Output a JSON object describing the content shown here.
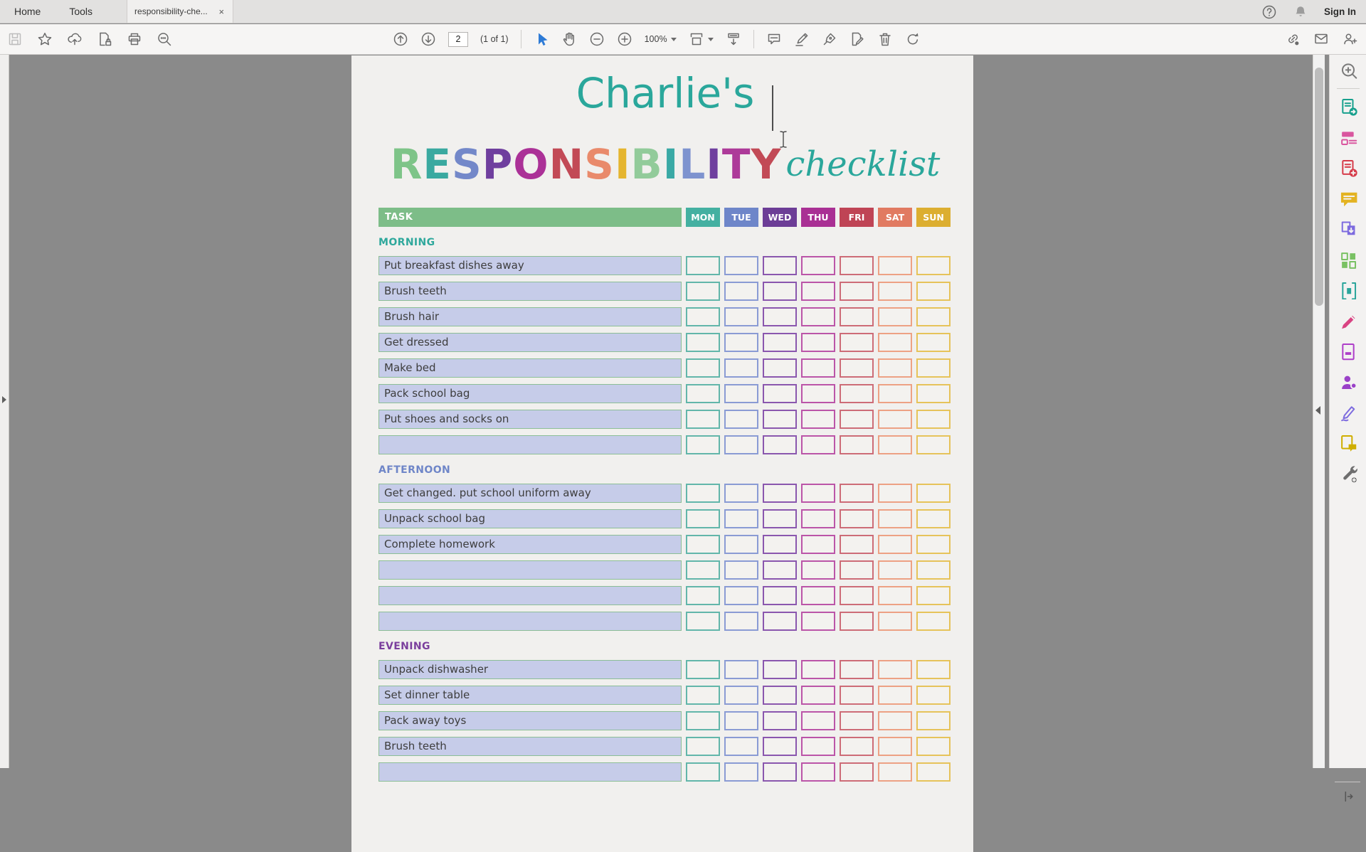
{
  "window": {
    "tabs": [
      {
        "label": "Home"
      },
      {
        "label": "Tools"
      }
    ],
    "document_tab": {
      "label": "responsibility-che...",
      "close_icon": "×"
    },
    "top_right": {
      "sign_in": "Sign In"
    }
  },
  "toolbar": {
    "page_number": "2",
    "page_count": "(1 of 1)",
    "zoom_level": "100%",
    "left_icons": [
      "save",
      "favorite-star",
      "share-cloud",
      "document-lock",
      "print",
      "find"
    ],
    "center_icons": [
      "previous-page",
      "next-page",
      "select-pointer",
      "hand-tool",
      "zoom-out",
      "zoom-in",
      "fit-page",
      "scroll-mode",
      "comment-bubble",
      "highlighter",
      "fill-sign-pen",
      "edit-page",
      "trash",
      "redo"
    ],
    "right_icons": [
      "share-link",
      "email",
      "person-add"
    ]
  },
  "document": {
    "title": "Charlie's",
    "title_color": "#2aa79b",
    "wordart": {
      "letters": [
        {
          "ch": "R",
          "color": "#7ec488"
        },
        {
          "ch": "E",
          "color": "#3aa9a0"
        },
        {
          "ch": "S",
          "color": "#7388c9"
        },
        {
          "ch": "P",
          "color": "#6f3f9e"
        },
        {
          "ch": "O",
          "color": "#ab3197"
        },
        {
          "ch": "N",
          "color": "#c24a56"
        },
        {
          "ch": "S",
          "color": "#e98a6b"
        },
        {
          "ch": "I",
          "color": "#e5b52f"
        },
        {
          "ch": "B",
          "color": "#92cb9a"
        },
        {
          "ch": "I",
          "color": "#3aa9a5"
        },
        {
          "ch": "L",
          "color": "#7e93cf"
        },
        {
          "ch": "I",
          "color": "#6f3f9e"
        },
        {
          "ch": "T",
          "color": "#ad3a99"
        },
        {
          "ch": "Y",
          "color": "#c24a56"
        }
      ],
      "suffix": "checklist",
      "suffix_color": "#2aa79b"
    },
    "table": {
      "task_header": "TASK",
      "task_header_color": "#7dbd88",
      "days": [
        {
          "label": "MON",
          "color": "#44b0a1",
          "box_border": "#62b6aa"
        },
        {
          "label": "TUE",
          "color": "#6e86c9",
          "box_border": "#8a9bd4"
        },
        {
          "label": "WED",
          "color": "#6c3d96",
          "box_border": "#8a57ae"
        },
        {
          "label": "THU",
          "color": "#a93094",
          "box_border": "#bb55a8"
        },
        {
          "label": "FRI",
          "color": "#bf4455",
          "box_border": "#cd6c77"
        },
        {
          "label": "SAT",
          "color": "#e17a61",
          "box_border": "#eda184"
        },
        {
          "label": "SUN",
          "color": "#dcae30",
          "box_border": "#e6c35a"
        }
      ],
      "row_fill": "#c6cce9",
      "row_border": "#8cbe96",
      "sections": [
        {
          "label": "MORNING",
          "color": "#2fa89c",
          "rows": [
            "Put breakfast dishes away",
            "Brush teeth",
            "Brush hair",
            "Get dressed",
            "Make bed",
            "Pack school bag",
            "Put shoes and socks on",
            ""
          ]
        },
        {
          "label": "AFTERNOON",
          "color": "#6f86c8",
          "rows": [
            "Get changed. put school uniform away",
            "Unpack school bag",
            "Complete homework",
            "",
            "",
            ""
          ]
        },
        {
          "label": "EVENING",
          "color": "#7b3f9d",
          "rows": [
            "Unpack dishwasher",
            "Set dinner table",
            "Pack away toys",
            "Brush teeth",
            ""
          ]
        }
      ]
    }
  },
  "right_rail": {
    "tools": [
      {
        "icon": "rail-search",
        "color": "#7a7a7a"
      },
      {
        "type": "divider"
      },
      {
        "icon": "export-pdf",
        "color": "#17a08d"
      },
      {
        "icon": "edit-pdf",
        "color": "#d9569f"
      },
      {
        "icon": "create-pdf",
        "color": "#d63c4a"
      },
      {
        "icon": "comment",
        "color": "#e3b322"
      },
      {
        "icon": "combine-files",
        "color": "#7d6bdf"
      },
      {
        "icon": "organize-pages",
        "color": "#79c163"
      },
      {
        "icon": "compress-pdf",
        "color": "#2aa59b"
      },
      {
        "icon": "fill-sign",
        "color": "#d94382"
      },
      {
        "icon": "redact",
        "color": "#ae3ec9"
      },
      {
        "icon": "request-signatures",
        "color": "#9a41c8"
      },
      {
        "icon": "sign-certificates",
        "color": "#7d6bdf"
      },
      {
        "icon": "send-for-comments",
        "color": "#cfae00"
      },
      {
        "icon": "more-tools",
        "color": "#6e6e6e"
      }
    ]
  }
}
